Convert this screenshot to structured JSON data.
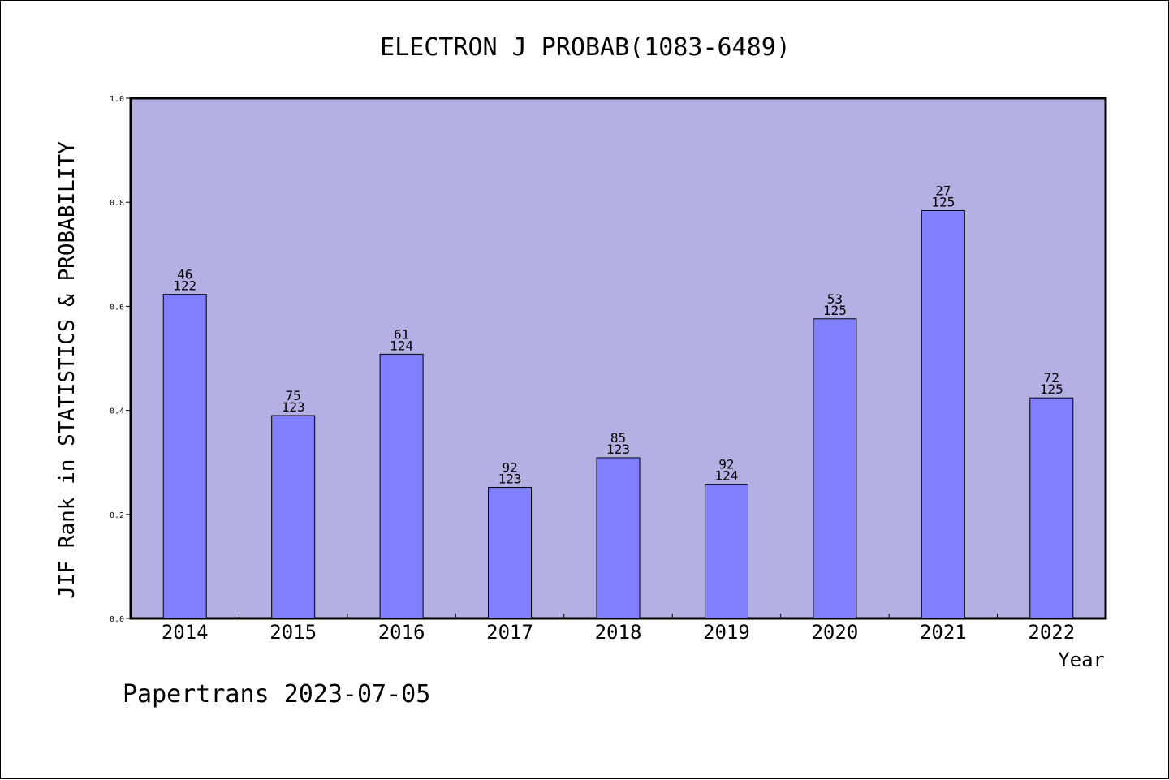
{
  "chart_data": {
    "type": "bar",
    "title": "ELECTRON J PROBAB(1083-6489)",
    "xlabel": "Year",
    "ylabel": "JIF Rank in STATISTICS & PROBABILITY",
    "ylim": [
      0.0,
      1.0
    ],
    "yticks": [
      "0.0",
      "0.2",
      "0.4",
      "0.6",
      "0.8",
      "1.0"
    ],
    "grid": false,
    "legend": "none",
    "categories": [
      "2014",
      "2015",
      "2016",
      "2017",
      "2018",
      "2019",
      "2020",
      "2021",
      "2022"
    ],
    "values": [
      0.623,
      0.39,
      0.508,
      0.252,
      0.309,
      0.258,
      0.576,
      0.784,
      0.424
    ],
    "rank": [
      "46",
      "75",
      "61",
      "92",
      "85",
      "92",
      "53",
      "27",
      "72"
    ],
    "total": [
      "122",
      "123",
      "124",
      "123",
      "123",
      "124",
      "125",
      "125",
      "125"
    ],
    "colors": {
      "plot_background": "#b5b0e3",
      "bar": "#8080ff",
      "bar_edge": "#000000",
      "axis": "#000000"
    }
  },
  "footer": {
    "text": "Papertrans 2023-07-05"
  }
}
